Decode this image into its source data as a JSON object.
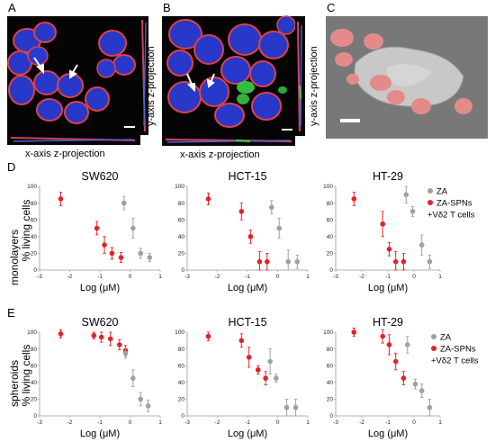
{
  "panels": {
    "A": {
      "letter": "A",
      "x_label": "x-axis z-projection",
      "y_label": "y-axis z-projection"
    },
    "B": {
      "letter": "B",
      "x_label": "x-axis z-projection",
      "y_label": "y-axis z-projection"
    },
    "C": {
      "letter": "C"
    },
    "D": {
      "letter": "D",
      "row_label_1": "monolayers",
      "row_label_2": "% living cells"
    },
    "E": {
      "letter": "E",
      "row_label_1": "spheroids",
      "row_label_2": "% living cells"
    }
  },
  "colors": {
    "za": "#a0a0a0",
    "za_spns": "#e8202a",
    "micro_bg": "#050505",
    "sem_bg": "#6f6f6f",
    "cell_red": "#e0404a",
    "nucleus_blue": "#2838c8",
    "green": "#39d04a",
    "sem_cell": "#e58a8a"
  },
  "chart_data": [
    {
      "type": "scatter",
      "panel": "D",
      "title": "SW620",
      "xlabel": "Log (μM)",
      "ylabel": "% living cells",
      "xlim": [
        -3,
        1
      ],
      "ylim": [
        0,
        100
      ],
      "x_ticks": [
        -3,
        -2,
        -1,
        0,
        1
      ],
      "y_ticks": [
        0,
        20,
        40,
        60,
        80,
        100
      ],
      "legend": null,
      "series": [
        {
          "name": "ZA-SPNs",
          "color": "#e8202a",
          "x": [
            -2.3,
            -1.1,
            -0.85,
            -0.6,
            -0.3
          ],
          "y": [
            85,
            50,
            30,
            20,
            15
          ],
          "err": [
            8,
            8,
            10,
            7,
            6
          ]
        },
        {
          "name": "ZA",
          "color": "#a0a0a0",
          "x": [
            -0.2,
            0.1,
            0.35,
            0.65
          ],
          "y": [
            80,
            50,
            20,
            15
          ],
          "err": [
            8,
            12,
            6,
            5
          ]
        }
      ]
    },
    {
      "type": "scatter",
      "panel": "D",
      "title": "HCT-15",
      "xlabel": "Log (μM)",
      "ylabel": "% living cells",
      "xlim": [
        -3,
        1
      ],
      "ylim": [
        0,
        100
      ],
      "x_ticks": [
        -3,
        -2,
        -1,
        0,
        1
      ],
      "y_ticks": [
        0,
        20,
        40,
        60,
        80,
        100
      ],
      "legend": null,
      "series": [
        {
          "name": "ZA-SPNs",
          "color": "#e8202a",
          "x": [
            -2.3,
            -1.2,
            -0.9,
            -0.6,
            -0.35
          ],
          "y": [
            85,
            70,
            40,
            10,
            10
          ],
          "err": [
            7,
            10,
            8,
            12,
            10
          ]
        },
        {
          "name": "ZA",
          "color": "#a0a0a0",
          "x": [
            -0.2,
            0.05,
            0.35,
            0.65
          ],
          "y": [
            75,
            50,
            10,
            10
          ],
          "err": [
            8,
            12,
            14,
            8
          ]
        }
      ]
    },
    {
      "type": "scatter",
      "panel": "D",
      "title": "HT-29",
      "xlabel": "Log (μM)",
      "ylabel": "% living cells",
      "xlim": [
        -3,
        1
      ],
      "ylim": [
        0,
        100
      ],
      "x_ticks": [
        -3,
        -2,
        -1,
        0,
        1
      ],
      "y_ticks": [
        0,
        20,
        40,
        60,
        80,
        100
      ],
      "legend": {
        "entries": [
          "ZA",
          "ZA-SPNs",
          "+Vδ2 T cells"
        ],
        "position": "right"
      },
      "series": [
        {
          "name": "ZA",
          "color": "#a0a0a0",
          "x": [
            -0.3,
            -0.05,
            0.3,
            0.6
          ],
          "y": [
            90,
            70,
            30,
            10
          ],
          "err": [
            10,
            6,
            12,
            8
          ]
        },
        {
          "name": "ZA-SPNs",
          "color": "#e8202a",
          "x": [
            -2.3,
            -1.2,
            -0.95,
            -0.7,
            -0.4
          ],
          "y": [
            85,
            55,
            25,
            10,
            10
          ],
          "err": [
            8,
            15,
            8,
            12,
            10
          ]
        }
      ]
    },
    {
      "type": "scatter",
      "panel": "E",
      "title": "SW620",
      "xlabel": "Log (μM)",
      "ylabel": "% living cells",
      "xlim": [
        -3,
        1
      ],
      "ylim": [
        0,
        100
      ],
      "x_ticks": [
        -3,
        -2,
        -1,
        0,
        1
      ],
      "y_ticks": [
        0,
        20,
        40,
        60,
        80,
        100
      ],
      "legend": null,
      "series": [
        {
          "name": "ZA-SPNs",
          "color": "#e8202a",
          "x": [
            -2.3,
            -1.2,
            -0.95,
            -0.65,
            -0.35,
            -0.15
          ],
          "y": [
            98,
            96,
            94,
            92,
            85,
            78
          ],
          "err": [
            5,
            4,
            6,
            8,
            6,
            6
          ]
        },
        {
          "name": "ZA",
          "color": "#a0a0a0",
          "x": [
            -0.15,
            0.1,
            0.35,
            0.6
          ],
          "y": [
            75,
            45,
            20,
            12
          ],
          "err": [
            6,
            10,
            8,
            7
          ]
        }
      ]
    },
    {
      "type": "scatter",
      "panel": "E",
      "title": "HCT-15",
      "xlabel": "Log (μM)",
      "ylabel": "% living cells",
      "xlim": [
        -3,
        1
      ],
      "ylim": [
        0,
        100
      ],
      "x_ticks": [
        -3,
        -2,
        -1,
        0,
        1
      ],
      "y_ticks": [
        0,
        20,
        40,
        60,
        80,
        100
      ],
      "legend": null,
      "series": [
        {
          "name": "ZA-SPNs",
          "color": "#e8202a",
          "x": [
            -2.3,
            -1.2,
            -0.95,
            -0.65,
            -0.4
          ],
          "y": [
            95,
            90,
            70,
            55,
            45
          ],
          "err": [
            5,
            8,
            12,
            5,
            8
          ]
        },
        {
          "name": "ZA",
          "color": "#a0a0a0",
          "x": [
            -0.25,
            -0.05,
            0.3,
            0.6
          ],
          "y": [
            65,
            45,
            10,
            10
          ],
          "err": [
            15,
            5,
            10,
            10
          ]
        }
      ]
    },
    {
      "type": "scatter",
      "panel": "E",
      "title": "HT-29",
      "xlabel": "Log (μM)",
      "ylabel": "% living cells",
      "xlim": [
        -3,
        1
      ],
      "ylim": [
        0,
        100
      ],
      "x_ticks": [
        -3,
        -2,
        -1,
        0,
        1
      ],
      "y_ticks": [
        0,
        20,
        40,
        60,
        80,
        100
      ],
      "legend": {
        "entries": [
          "ZA",
          "ZA-SPNs",
          "+Vδ2 T cells"
        ],
        "position": "right"
      },
      "series": [
        {
          "name": "ZA-SPNs",
          "color": "#e8202a",
          "x": [
            -2.3,
            -1.2,
            -0.95,
            -0.7,
            -0.4
          ],
          "y": [
            100,
            95,
            85,
            65,
            45
          ],
          "err": [
            5,
            8,
            12,
            10,
            8
          ]
        },
        {
          "name": "ZA",
          "color": "#a0a0a0",
          "x": [
            -0.25,
            0.05,
            0.3,
            0.6
          ],
          "y": [
            85,
            38,
            30,
            10
          ],
          "err": [
            10,
            6,
            8,
            10
          ]
        }
      ]
    }
  ]
}
